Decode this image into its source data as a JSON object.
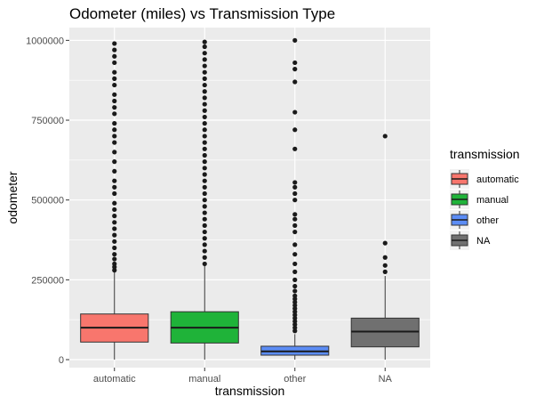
{
  "chart_data": {
    "type": "boxplot",
    "title": "Odometer (miles) vs Transmission Type",
    "xlabel": "transmission",
    "ylabel": "odometer",
    "ylim": [
      -25000,
      1040000
    ],
    "yticks": [
      0,
      250000,
      500000,
      750000,
      1000000
    ],
    "ytick_labels": [
      "0",
      "250000",
      "500000",
      "750000",
      "1000000"
    ],
    "categories": [
      "automatic",
      "manual",
      "other",
      "NA"
    ],
    "grid": true,
    "legend": {
      "title": "transmission",
      "position": "right",
      "entries": [
        "automatic",
        "manual",
        "other",
        "NA"
      ]
    },
    "colors": {
      "automatic": "#F8766D",
      "manual": "#1FB339",
      "other": "#5B8CF5",
      "NA": "#707070",
      "panel": "#EBEBEB",
      "outlier": "#1a1a1a"
    },
    "boxes": [
      {
        "name": "automatic",
        "q1": 55000,
        "median": 100000,
        "q3": 143000,
        "whisker_low": 0,
        "whisker_high": 275000,
        "outliers": [
          280000,
          290000,
          300000,
          315000,
          330000,
          350000,
          370000,
          390000,
          410000,
          430000,
          450000,
          470000,
          490000,
          520000,
          540000,
          560000,
          590000,
          620000,
          650000,
          680000,
          700000,
          720000,
          740000,
          770000,
          790000,
          810000,
          830000,
          860000,
          880000,
          900000,
          930000,
          950000,
          970000,
          990000
        ]
      },
      {
        "name": "manual",
        "q1": 52000,
        "median": 100000,
        "q3": 150000,
        "whisker_low": 0,
        "whisker_high": 295000,
        "outliers": [
          300000,
          320000,
          340000,
          360000,
          380000,
          400000,
          420000,
          440000,
          460000,
          480000,
          500000,
          520000,
          540000,
          560000,
          580000,
          600000,
          620000,
          640000,
          660000,
          680000,
          700000,
          720000,
          740000,
          760000,
          780000,
          800000,
          820000,
          840000,
          860000,
          880000,
          900000,
          920000,
          940000,
          960000,
          980000,
          995000
        ]
      },
      {
        "name": "other",
        "q1": 14000,
        "median": 26000,
        "q3": 42000,
        "whisker_low": 0,
        "whisker_high": 80000,
        "outliers": [
          90000,
          100000,
          110000,
          120000,
          130000,
          140000,
          150000,
          160000,
          170000,
          180000,
          190000,
          200000,
          215000,
          230000,
          250000,
          275000,
          300000,
          330000,
          360000,
          400000,
          420000,
          440000,
          455000,
          500000,
          520000,
          540000,
          555000,
          660000,
          720000,
          775000,
          870000,
          910000,
          930000,
          1000000
        ]
      },
      {
        "name": "NA",
        "q1": 40000,
        "median": 88000,
        "q3": 130000,
        "whisker_low": 0,
        "whisker_high": 262000,
        "outliers": [
          275000,
          295000,
          320000,
          365000,
          700000
        ]
      }
    ]
  }
}
